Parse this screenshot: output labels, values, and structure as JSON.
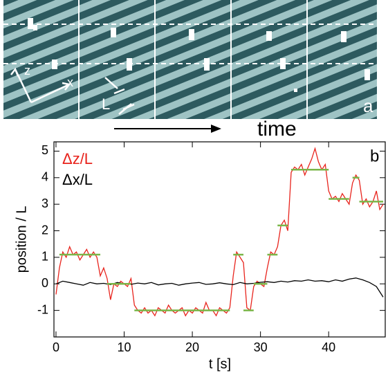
{
  "top_panel": {
    "axis_labels": [
      "z",
      "x"
    ],
    "length_label": "L",
    "panel_label": "a",
    "arrow_label": "time"
  },
  "chart_data": {
    "type": "line",
    "panel_label": "b",
    "xlabel": "t [s]",
    "ylabel": "position / L",
    "xlim": [
      -0.3,
      48.3
    ],
    "ylim": [
      -2,
      5.35
    ],
    "xticks": [
      0,
      10,
      20,
      30,
      40
    ],
    "yticks": [
      -1,
      0,
      1,
      2,
      3,
      4,
      5
    ],
    "series": [
      {
        "name": "Δz/L",
        "color": "#e8231c",
        "x": [
          0,
          0.5,
          1,
          1.5,
          2,
          2.5,
          3,
          3.5,
          4,
          4.5,
          5,
          5.5,
          6,
          6.5,
          7,
          7.5,
          8,
          8.5,
          9,
          9.5,
          10,
          10.5,
          11,
          11.5,
          12,
          12.5,
          13,
          13.5,
          14,
          14.5,
          15,
          15.5,
          16,
          16.5,
          17,
          17.5,
          18,
          18.5,
          19,
          19.5,
          20,
          20.5,
          21,
          21.5,
          22,
          22.5,
          23,
          23.5,
          24,
          24.5,
          25,
          25.5,
          26,
          26.5,
          27,
          27.5,
          28,
          28.5,
          29,
          29.5,
          30,
          30.5,
          31,
          31.5,
          32,
          32.5,
          33,
          33.5,
          34,
          34.5,
          35,
          35.5,
          36,
          36.5,
          37,
          37.5,
          38,
          38.5,
          39,
          39.5,
          40,
          40.5,
          41,
          41.5,
          42,
          42.5,
          43,
          43.5,
          44,
          44.5,
          45,
          45.5,
          46,
          46.5,
          47,
          47.5,
          48
        ],
        "values": [
          -0.4,
          0.6,
          1.2,
          1.0,
          1.4,
          1.1,
          1.2,
          0.9,
          1.1,
          1.3,
          1.0,
          1.2,
          1.0,
          0.3,
          0.6,
          0.2,
          -0.6,
          0.0,
          -0.1,
          0.1,
          0.0,
          -0.1,
          0.2,
          -0.8,
          -1.0,
          -1.1,
          -0.9,
          -1.1,
          -1.0,
          -1.2,
          -0.9,
          -1.0,
          -1.1,
          -0.8,
          -1.0,
          -1.1,
          -1.0,
          -0.9,
          -1.2,
          -1.0,
          -1.1,
          -0.9,
          -1.0,
          -1.1,
          -0.7,
          -1.0,
          -1.0,
          -1.2,
          -0.9,
          -1.0,
          -1.1,
          -0.9,
          0.3,
          1.2,
          1.0,
          0.8,
          -0.9,
          -1.0,
          -0.1,
          0.1,
          0.0,
          -0.1,
          0.6,
          1.2,
          1.1,
          1.4,
          2.2,
          2.4,
          2.0,
          4.2,
          4.4,
          4.3,
          4.5,
          4.1,
          4.4,
          4.7,
          5.1,
          4.6,
          4.3,
          4.5,
          3.5,
          3.2,
          3.3,
          3.1,
          3.4,
          3.2,
          3.0,
          3.8,
          4.1,
          3.9,
          3.0,
          3.2,
          2.9,
          3.1,
          3.5,
          2.8,
          3.0
        ]
      },
      {
        "name": "Δx/L",
        "color": "#000000",
        "x": [
          0,
          1,
          2,
          3,
          4,
          5,
          6,
          7,
          8,
          9,
          10,
          11,
          12,
          13,
          14,
          15,
          16,
          17,
          18,
          19,
          20,
          21,
          22,
          23,
          24,
          25,
          26,
          27,
          28,
          29,
          30,
          31,
          32,
          33,
          34,
          35,
          36,
          37,
          38,
          39,
          40,
          41,
          42,
          43,
          44,
          45,
          46,
          47,
          48
        ],
        "values": [
          0,
          0.1,
          0.05,
          0,
          -0.05,
          0.05,
          0,
          0.02,
          -0.03,
          0.05,
          0,
          -0.02,
          0.03,
          0,
          0.05,
          -0.04,
          0,
          0.02,
          -0.05,
          0,
          0.03,
          0.05,
          -0.02,
          0,
          0.04,
          0,
          -0.03,
          0.05,
          0,
          0.02,
          0.06,
          0.08,
          0.05,
          0.1,
          0.07,
          0.12,
          0.1,
          0.15,
          0.1,
          0.12,
          0.08,
          0.15,
          0.1,
          0.18,
          0.22,
          0.15,
          0.05,
          -0.1,
          -0.5
        ]
      }
    ],
    "steps": {
      "color": "#7ab648",
      "segments": [
        {
          "x": [
            0.5,
            6.5
          ],
          "y": 1.1
        },
        {
          "x": [
            7.5,
            11
          ],
          "y": 0
        },
        {
          "x": [
            11.5,
            25.5
          ],
          "y": -1
        },
        {
          "x": [
            26,
            27.5
          ],
          "y": 1.1
        },
        {
          "x": [
            27.5,
            29
          ],
          "y": -1
        },
        {
          "x": [
            29,
            31
          ],
          "y": 0
        },
        {
          "x": [
            31,
            32.5
          ],
          "y": 1.1
        },
        {
          "x": [
            32.5,
            34
          ],
          "y": 2.2
        },
        {
          "x": [
            34.5,
            40
          ],
          "y": 4.3
        },
        {
          "x": [
            40,
            43
          ],
          "y": 3.2
        },
        {
          "x": [
            43.5,
            44.5
          ],
          "y": 4.0
        },
        {
          "x": [
            44.5,
            48
          ],
          "y": 3.1
        }
      ]
    }
  }
}
